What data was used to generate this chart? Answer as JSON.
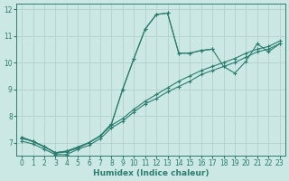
{
  "xlabel": "Humidex (Indice chaleur)",
  "ylabel": "",
  "xlim": [
    -0.5,
    23.5
  ],
  "ylim": [
    6.5,
    12.2
  ],
  "yticks": [
    7,
    8,
    9,
    10,
    11,
    12
  ],
  "xticks": [
    0,
    1,
    2,
    3,
    4,
    5,
    6,
    7,
    8,
    9,
    10,
    11,
    12,
    13,
    14,
    15,
    16,
    17,
    18,
    19,
    20,
    21,
    22,
    23
  ],
  "bg_color": "#cce8e5",
  "grid_color": "#b8d4d0",
  "line_color": "#2a7d6e",
  "series": [
    {
      "x": [
        0,
        1,
        2,
        3,
        4,
        5,
        6,
        7,
        8,
        9,
        10,
        11,
        12,
        13,
        14,
        15,
        16,
        17,
        18,
        19,
        20,
        21,
        22,
        23
      ],
      "y": [
        7.2,
        7.05,
        6.85,
        6.62,
        6.68,
        6.8,
        7.0,
        7.25,
        7.7,
        9.0,
        10.15,
        11.25,
        11.8,
        11.85,
        10.35,
        10.35,
        10.45,
        10.5,
        null,
        null,
        null,
        null,
        null,
        null
      ]
    },
    {
      "x": [
        0,
        2,
        3,
        4,
        6,
        7,
        8,
        9,
        10,
        11,
        12,
        13,
        14,
        15,
        16,
        17,
        18,
        19,
        20,
        21,
        22,
        23
      ],
      "y": [
        7.2,
        6.85,
        6.62,
        6.68,
        7.0,
        7.25,
        7.7,
        9.0,
        10.15,
        11.25,
        11.8,
        11.85,
        10.35,
        10.35,
        10.45,
        10.5,
        9.85,
        9.6,
        10.05,
        10.7,
        10.4,
        10.7
      ]
    },
    {
      "x": [
        0,
        1,
        2,
        3,
        4,
        5,
        6,
        7,
        8,
        9,
        10,
        11,
        12,
        13,
        14,
        15,
        16,
        17,
        18,
        19,
        20,
        21,
        22,
        23
      ],
      "y": [
        7.15,
        7.05,
        6.85,
        6.6,
        6.65,
        6.8,
        7.0,
        7.25,
        7.65,
        7.9,
        8.25,
        8.55,
        8.8,
        9.05,
        9.3,
        9.5,
        9.7,
        9.85,
        10.0,
        10.15,
        10.35,
        10.5,
        10.6,
        10.8
      ]
    },
    {
      "x": [
        0,
        1,
        2,
        3,
        4,
        5,
        6,
        7,
        8,
        9,
        10,
        11,
        12,
        13,
        14,
        15,
        16,
        17,
        18,
        19,
        20,
        21,
        22,
        23
      ],
      "y": [
        7.05,
        6.95,
        6.75,
        6.55,
        6.55,
        6.75,
        6.9,
        7.15,
        7.55,
        7.8,
        8.15,
        8.45,
        8.65,
        8.9,
        9.1,
        9.3,
        9.55,
        9.7,
        9.85,
        10.0,
        10.2,
        10.4,
        10.5,
        10.7
      ]
    }
  ]
}
